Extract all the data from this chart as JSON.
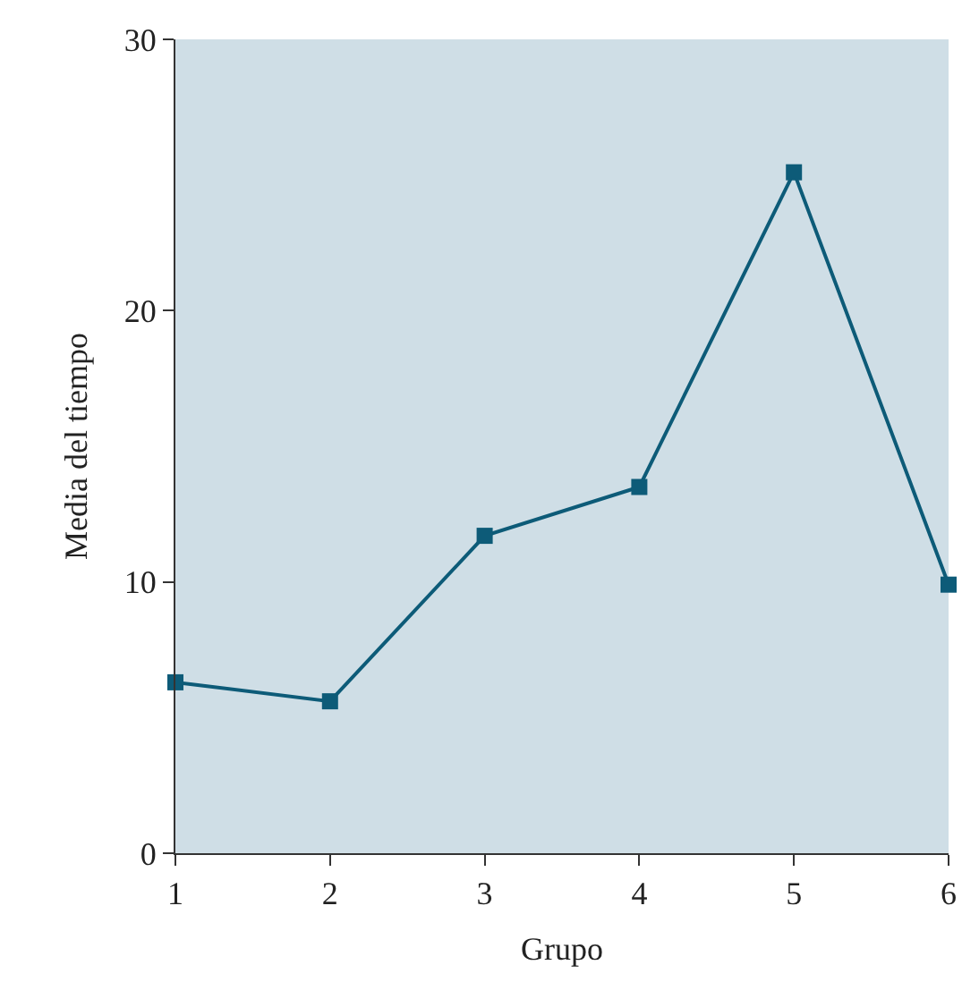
{
  "chart_data": {
    "type": "line",
    "xlabel": "Grupo",
    "ylabel": "Media del tiempo",
    "x": [
      1,
      2,
      3,
      4,
      5,
      6
    ],
    "series": [
      {
        "color": "#0d5b78",
        "values": [
          6.3,
          5.6,
          11.7,
          13.5,
          25.1,
          9.9
        ]
      }
    ],
    "xlim": [
      1,
      6
    ],
    "xticks": [
      1,
      2,
      3,
      4,
      5,
      6
    ],
    "ylim": [
      0,
      30
    ],
    "yticks": [
      0,
      10,
      20,
      30
    ],
    "marker": "square",
    "line_style": "solid",
    "grid": false,
    "legend": false
  }
}
